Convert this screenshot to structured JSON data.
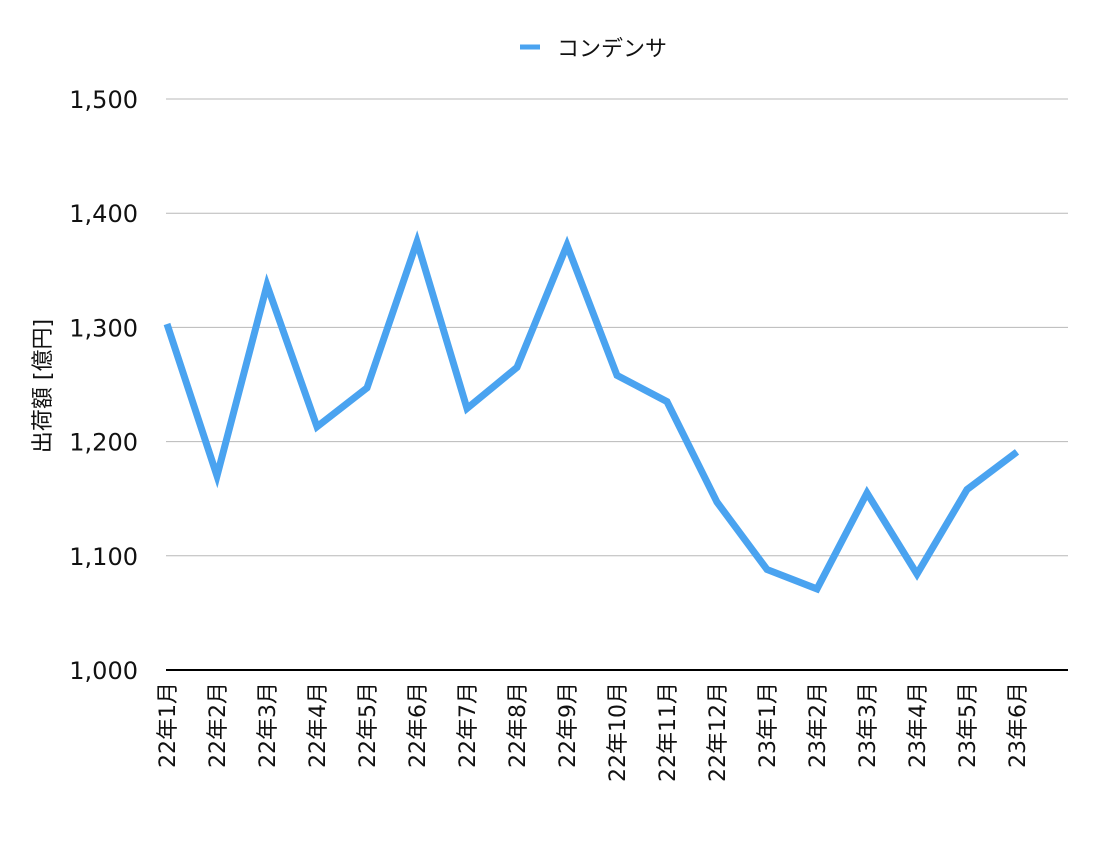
{
  "chart_data": {
    "type": "line",
    "title": "",
    "xlabel": "",
    "ylabel": "出荷額 [億円]",
    "ylim": [
      1000,
      1500
    ],
    "yticks": [
      1000,
      1100,
      1200,
      1300,
      1400,
      1500
    ],
    "ytick_labels": [
      "1,000",
      "1,100",
      "1,200",
      "1,300",
      "1,400",
      "1,500"
    ],
    "grid": true,
    "legend_position": "top-center",
    "categories": [
      "22年1月",
      "22年2月",
      "22年3月",
      "22年4月",
      "22年5月",
      "22年6月",
      "22年7月",
      "22年8月",
      "22年9月",
      "22年10月",
      "22年11月",
      "22年12月",
      "23年1月",
      "23年2月",
      "23年3月",
      "23年4月",
      "23年5月",
      "23年6月"
    ],
    "series": [
      {
        "name": "コンデンサ",
        "color": "#4aa3f0",
        "values": [
          1303,
          1170,
          1337,
          1213,
          1247,
          1375,
          1229,
          1265,
          1372,
          1258,
          1235,
          1147,
          1088,
          1071,
          1155,
          1084,
          1158,
          1191
        ]
      }
    ]
  },
  "colors": {
    "axis": "#000000",
    "grid": "#b8b8b8",
    "text": "#111111"
  }
}
